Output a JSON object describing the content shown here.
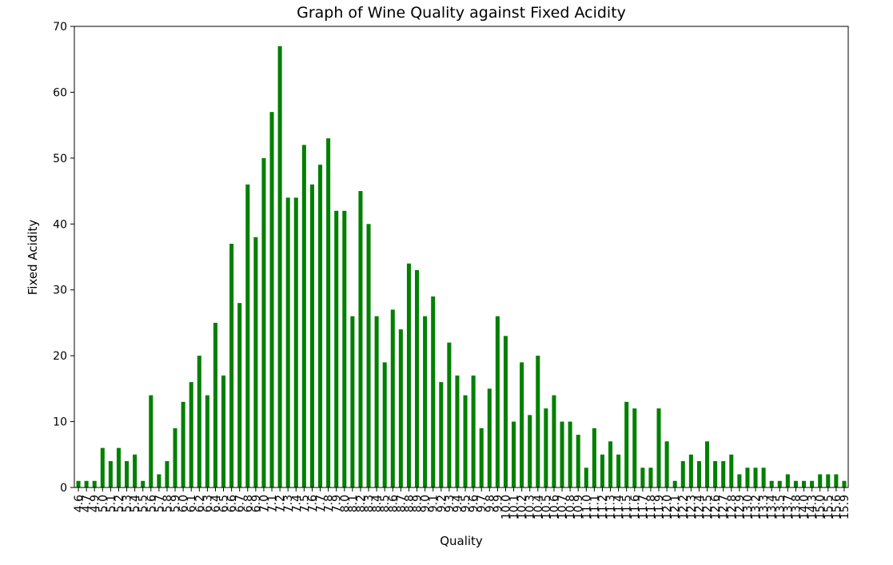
{
  "chart_data": {
    "type": "bar",
    "title": "Graph of Wine Quality against Fixed Acidity",
    "xlabel": "Quality",
    "ylabel": "Fixed Acidity",
    "ylim": [
      0,
      70
    ],
    "yticks": [
      0,
      10,
      20,
      30,
      40,
      50,
      60,
      70
    ],
    "bar_color": "#008000",
    "grid": false,
    "legend": "none",
    "categories": [
      "4.6",
      "4.7",
      "4.9",
      "5.0",
      "5.1",
      "5.2",
      "5.3",
      "5.4",
      "5.5",
      "5.6",
      "5.7",
      "5.8",
      "5.9",
      "6.0",
      "6.1",
      "6.2",
      "6.3",
      "6.4",
      "6.5",
      "6.6",
      "6.7",
      "6.8",
      "6.9",
      "7.0",
      "7.1",
      "7.2",
      "7.3",
      "7.4",
      "7.5",
      "7.6",
      "7.7",
      "7.8",
      "7.9",
      "8.0",
      "8.1",
      "8.2",
      "8.3",
      "8.4",
      "8.5",
      "8.6",
      "8.7",
      "8.8",
      "8.9",
      "9.0",
      "9.1",
      "9.2",
      "9.3",
      "9.4",
      "9.5",
      "9.6",
      "9.7",
      "9.8",
      "9.9",
      "10.0",
      "10.1",
      "10.2",
      "10.3",
      "10.4",
      "10.5",
      "10.6",
      "10.7",
      "10.8",
      "10.9",
      "11.0",
      "11.1",
      "11.2",
      "11.3",
      "11.4",
      "11.5",
      "11.6",
      "11.7",
      "11.8",
      "11.9",
      "12.0",
      "12.1",
      "12.2",
      "12.3",
      "12.4",
      "12.5",
      "12.6",
      "12.7",
      "12.8",
      "12.9",
      "13.0",
      "13.2",
      "13.3",
      "13.4",
      "13.5",
      "13.7",
      "13.8",
      "14.0",
      "14.3",
      "15.0",
      "15.5",
      "15.6",
      "15.9"
    ],
    "values": [
      1,
      1,
      1,
      6,
      4,
      6,
      4,
      5,
      1,
      14,
      2,
      4,
      9,
      13,
      16,
      20,
      14,
      25,
      17,
      37,
      28,
      46,
      38,
      50,
      57,
      67,
      44,
      44,
      52,
      46,
      49,
      53,
      42,
      42,
      26,
      45,
      40,
      26,
      19,
      27,
      24,
      34,
      33,
      26,
      29,
      16,
      22,
      17,
      14,
      17,
      9,
      15,
      26,
      23,
      10,
      19,
      11,
      20,
      12,
      14,
      10,
      10,
      8,
      3,
      9,
      5,
      7,
      5,
      13,
      12,
      3,
      3,
      12,
      7,
      1,
      4,
      5,
      4,
      7,
      4,
      4,
      5,
      2,
      3,
      3,
      3,
      1,
      1,
      2,
      1,
      1,
      1,
      2,
      2,
      2,
      1
    ]
  }
}
